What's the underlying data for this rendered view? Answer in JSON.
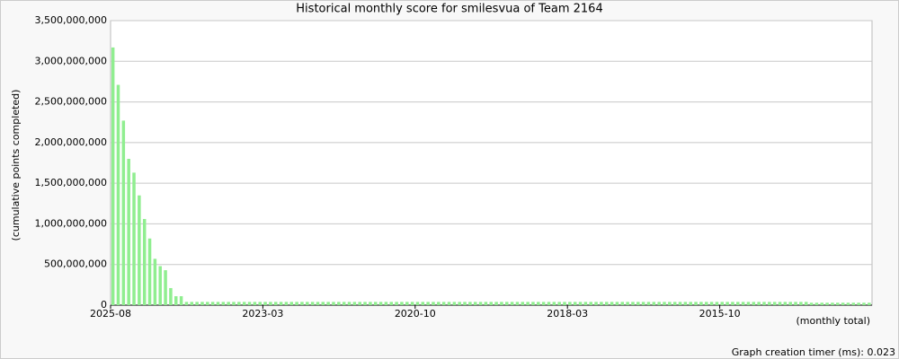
{
  "chart_data": {
    "type": "bar",
    "title": "Historical monthly score for smilesvua of Team 2164",
    "y_label": "(cumulative points completed)",
    "x_label": "(monthly total)",
    "footer": "Graph creation timer (ms): 0.023",
    "color": "#90ee90",
    "grid": true,
    "ylim": [
      0,
      3500000000
    ],
    "yticks": [
      0,
      {
        "value": 500000000,
        "label": "500,000,000"
      },
      {
        "value": 1000000000,
        "label": "1,000,000,000"
      },
      {
        "value": 1500000000,
        "label": "1,500,000,000"
      },
      {
        "value": 2000000000,
        "label": "2,000,000,000"
      },
      {
        "value": 2500000000,
        "label": "2,500,000,000"
      },
      {
        "value": 3000000000,
        "label": "3,000,000,000"
      },
      {
        "value": 3500000000,
        "label": "3,500,000,000"
      }
    ],
    "categories": [
      "2025-08",
      null,
      null,
      null,
      null,
      null,
      null,
      null,
      null,
      null,
      null,
      null,
      null,
      null,
      null,
      null,
      null,
      null,
      null,
      null,
      null,
      null,
      null,
      null,
      null,
      null,
      null,
      null,
      null,
      "2023-03",
      null,
      null,
      null,
      null,
      null,
      null,
      null,
      null,
      null,
      null,
      null,
      null,
      null,
      null,
      null,
      null,
      null,
      null,
      null,
      null,
      null,
      null,
      null,
      null,
      null,
      null,
      null,
      null,
      "2020-10",
      null,
      null,
      null,
      null,
      null,
      null,
      null,
      null,
      null,
      null,
      null,
      null,
      null,
      null,
      null,
      null,
      null,
      null,
      null,
      null,
      null,
      null,
      null,
      null,
      null,
      null,
      null,
      null,
      "2018-03",
      null,
      null,
      null,
      null,
      null,
      null,
      null,
      null,
      null,
      null,
      null,
      null,
      null,
      null,
      null,
      null,
      null,
      null,
      null,
      null,
      null,
      null,
      null,
      null,
      null,
      null,
      null,
      null,
      "2015-10",
      null,
      null,
      null,
      null,
      null,
      null,
      null,
      null,
      null,
      null,
      null,
      null,
      null,
      null,
      null,
      null,
      null,
      null,
      null,
      null,
      null,
      null,
      null,
      null,
      null,
      null,
      null,
      null
    ],
    "values": [
      3170000000,
      2710000000,
      2270000000,
      1800000000,
      1630000000,
      1350000000,
      1060000000,
      820000000,
      570000000,
      480000000,
      430000000,
      210000000,
      110000000,
      110000000,
      40000000,
      40000000,
      40000000,
      40000000,
      40000000,
      40000000,
      40000000,
      40000000,
      40000000,
      40000000,
      40000000,
      40000000,
      40000000,
      40000000,
      40000000,
      40000000,
      40000000,
      40000000,
      40000000,
      40000000,
      40000000,
      40000000,
      40000000,
      40000000,
      40000000,
      40000000,
      40000000,
      40000000,
      40000000,
      40000000,
      40000000,
      40000000,
      40000000,
      40000000,
      40000000,
      40000000,
      40000000,
      40000000,
      40000000,
      40000000,
      40000000,
      40000000,
      40000000,
      40000000,
      40000000,
      40000000,
      40000000,
      40000000,
      40000000,
      40000000,
      40000000,
      40000000,
      40000000,
      40000000,
      40000000,
      40000000,
      40000000,
      40000000,
      40000000,
      40000000,
      40000000,
      40000000,
      40000000,
      40000000,
      40000000,
      40000000,
      40000000,
      40000000,
      40000000,
      40000000,
      40000000,
      40000000,
      40000000,
      40000000,
      40000000,
      40000000,
      40000000,
      40000000,
      40000000,
      40000000,
      40000000,
      40000000,
      40000000,
      40000000,
      40000000,
      40000000,
      40000000,
      40000000,
      40000000,
      40000000,
      40000000,
      40000000,
      40000000,
      40000000,
      40000000,
      40000000,
      40000000,
      40000000,
      40000000,
      40000000,
      40000000,
      40000000,
      40000000,
      40000000,
      40000000,
      40000000,
      40000000,
      40000000,
      40000000,
      40000000,
      40000000,
      40000000,
      40000000,
      40000000,
      40000000,
      40000000,
      40000000,
      40000000,
      40000000,
      30000000,
      30000000,
      30000000,
      30000000,
      30000000,
      30000000,
      30000000,
      30000000,
      30000000,
      30000000,
      30000000,
      30000000
    ]
  }
}
